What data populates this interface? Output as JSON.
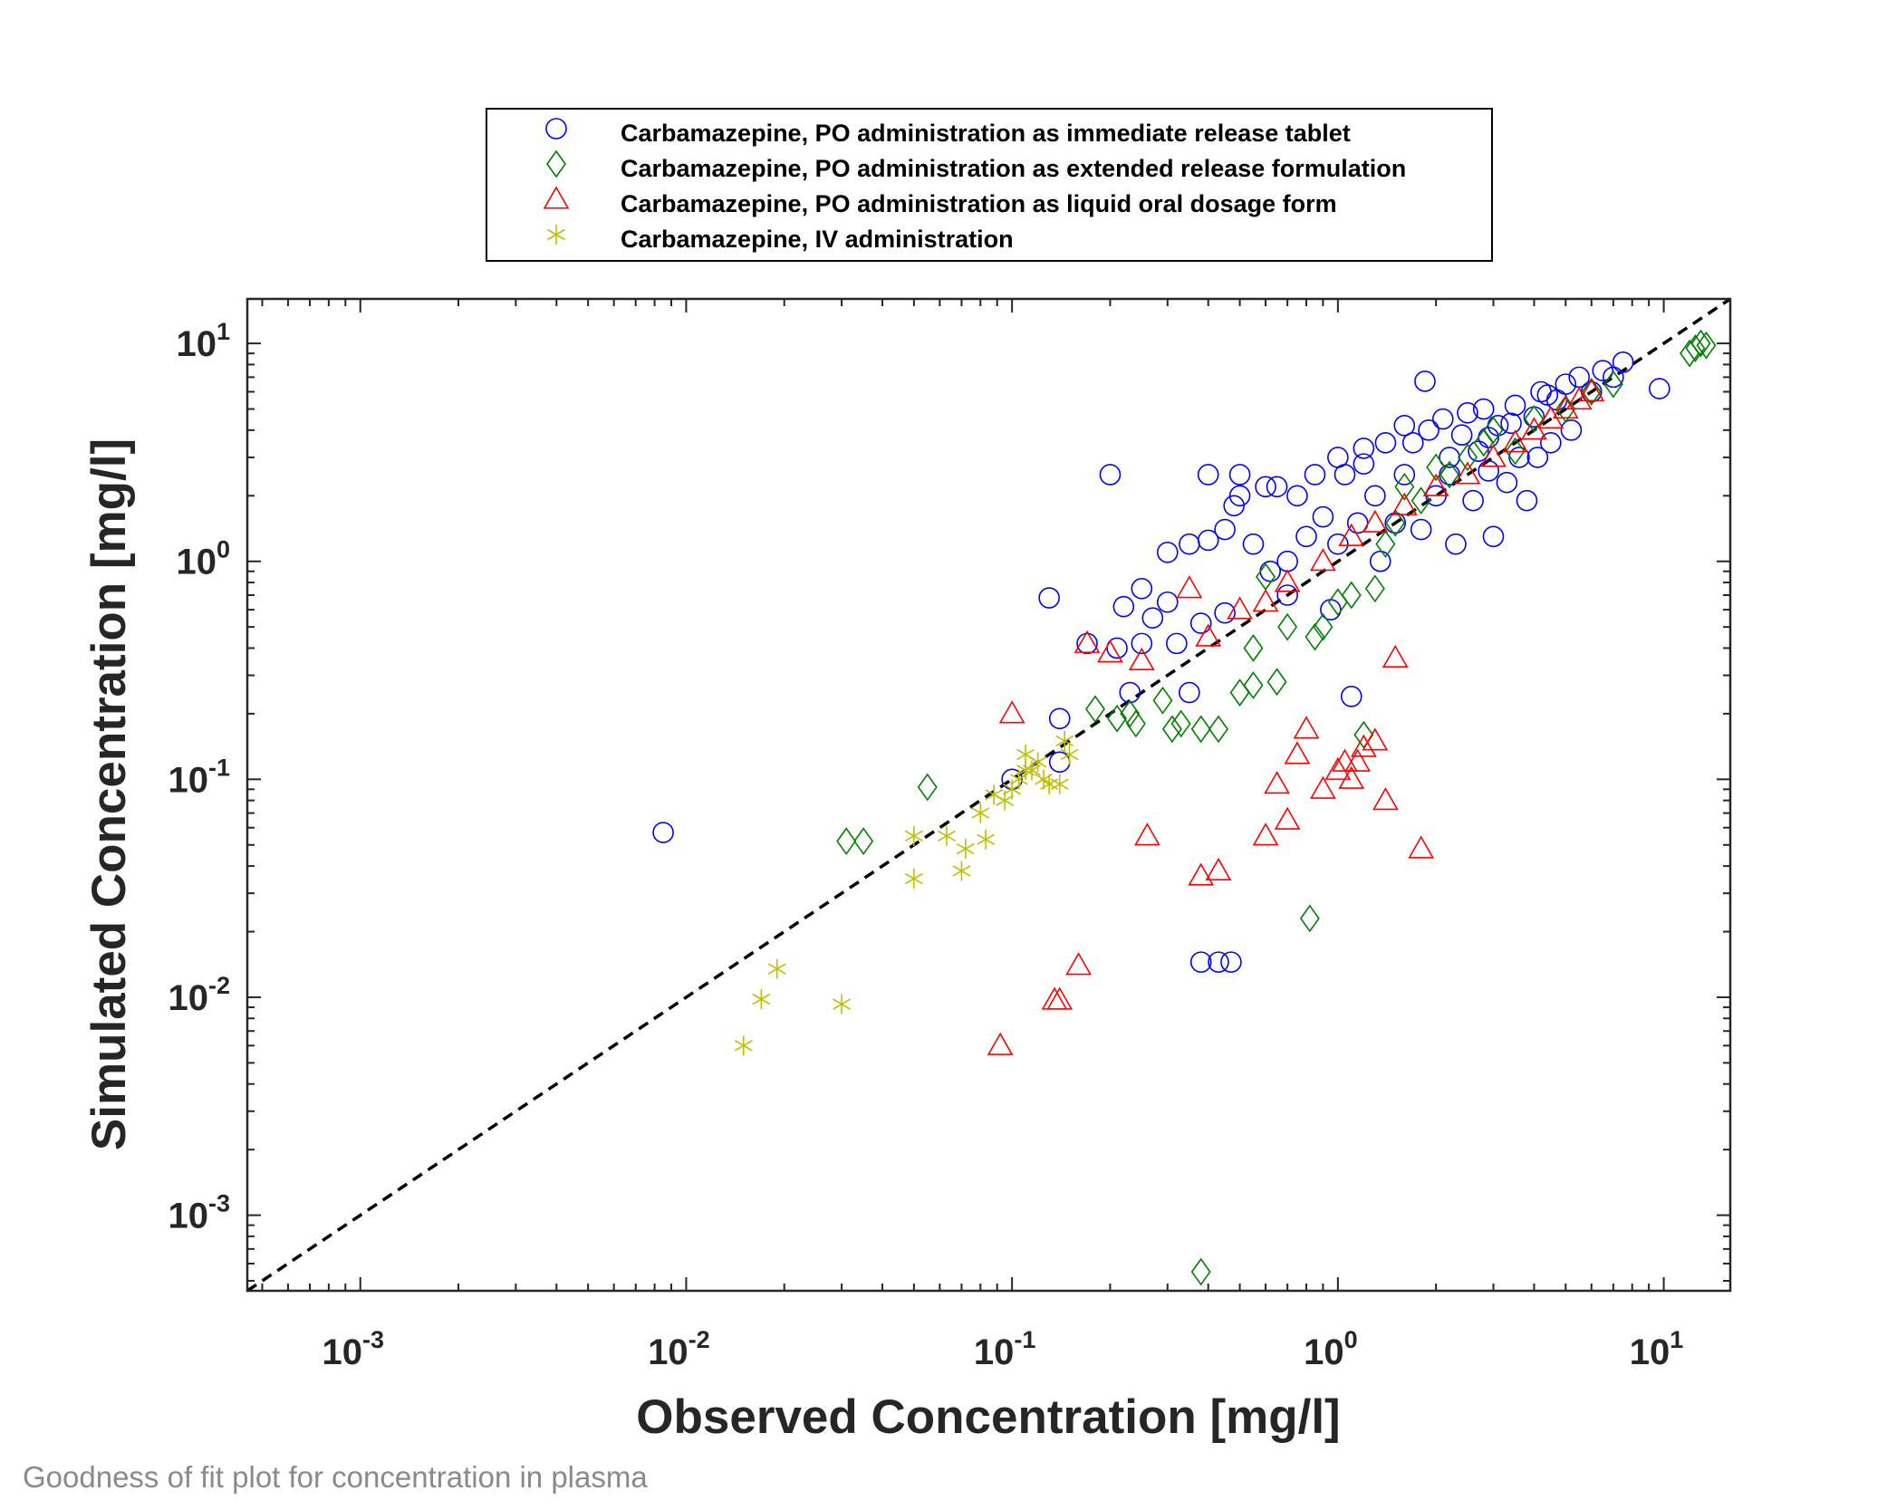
{
  "caption": "Goodness of fit plot for concentration in plasma",
  "colors": {
    "blue": "#0000ff",
    "green": "#008000",
    "red": "#ff0000",
    "yellow": "#bfbf00",
    "axis": "#262626",
    "frame": "#000000"
  },
  "chart_data": {
    "type": "scatter",
    "xlabel": "Observed Concentration [mg/l]",
    "ylabel": "Simulated Concentration [mg/l]",
    "xscale": "log",
    "yscale": "log",
    "xlim": [
      0.00045,
      16
    ],
    "ylim": [
      0.00045,
      16
    ],
    "x_ticks": [
      0.001,
      0.01,
      0.1,
      1,
      10
    ],
    "y_ticks": [
      0.001,
      0.01,
      0.1,
      1,
      10
    ],
    "tick_labels": [
      {
        "base": "10",
        "exp": "-3"
      },
      {
        "base": "10",
        "exp": "-2"
      },
      {
        "base": "10",
        "exp": "-1"
      },
      {
        "base": "10",
        "exp": "0"
      },
      {
        "base": "10",
        "exp": "1"
      }
    ],
    "identity_line": {
      "style": "dashed",
      "color": "#000000"
    },
    "legend_position": "top",
    "grid": false,
    "series": [
      {
        "name": "Carbamazepine, PO administration as immediate release tablet",
        "marker": "circle",
        "color": "#0000ff",
        "points": [
          [
            0.0085,
            0.057
          ],
          [
            0.1,
            0.1
          ],
          [
            0.14,
            0.12
          ],
          [
            0.14,
            0.19
          ],
          [
            0.13,
            0.68
          ],
          [
            0.17,
            0.42
          ],
          [
            0.2,
            2.5
          ],
          [
            0.21,
            0.4
          ],
          [
            0.22,
            0.62
          ],
          [
            0.23,
            0.25
          ],
          [
            0.25,
            0.42
          ],
          [
            0.25,
            0.75
          ],
          [
            0.27,
            0.55
          ],
          [
            0.3,
            0.65
          ],
          [
            0.32,
            0.42
          ],
          [
            0.35,
            0.25
          ],
          [
            0.35,
            1.2
          ],
          [
            0.38,
            0.52
          ],
          [
            0.4,
            2.5
          ],
          [
            0.4,
            1.25
          ],
          [
            0.45,
            1.4
          ],
          [
            0.48,
            1.8
          ],
          [
            0.5,
            2.0
          ],
          [
            0.5,
            2.5
          ],
          [
            0.55,
            1.2
          ],
          [
            0.6,
            2.2
          ],
          [
            0.62,
            0.9
          ],
          [
            0.65,
            2.2
          ],
          [
            0.7,
            1.0
          ],
          [
            0.75,
            2.0
          ],
          [
            0.8,
            1.3
          ],
          [
            0.85,
            2.5
          ],
          [
            0.9,
            1.6
          ],
          [
            0.95,
            0.6
          ],
          [
            1.0,
            3.0
          ],
          [
            1.0,
            1.2
          ],
          [
            1.05,
            2.5
          ],
          [
            1.1,
            0.24
          ],
          [
            1.15,
            1.5
          ],
          [
            1.2,
            3.3
          ],
          [
            1.3,
            2.0
          ],
          [
            1.35,
            1.0
          ],
          [
            1.4,
            3.5
          ],
          [
            1.5,
            1.5
          ],
          [
            1.6,
            2.5
          ],
          [
            1.7,
            3.5
          ],
          [
            1.8,
            1.4
          ],
          [
            1.85,
            6.7
          ],
          [
            1.9,
            4.0
          ],
          [
            2.0,
            2.0
          ],
          [
            2.1,
            4.5
          ],
          [
            2.2,
            2.5
          ],
          [
            2.3,
            1.2
          ],
          [
            2.4,
            3.8
          ],
          [
            2.5,
            4.8
          ],
          [
            2.6,
            1.9
          ],
          [
            2.7,
            3.2
          ],
          [
            2.8,
            5.0
          ],
          [
            2.9,
            2.6
          ],
          [
            3.0,
            1.3
          ],
          [
            3.1,
            4.2
          ],
          [
            3.3,
            2.3
          ],
          [
            3.5,
            5.2
          ],
          [
            3.6,
            3.0
          ],
          [
            3.8,
            1.9
          ],
          [
            4.0,
            4.6
          ],
          [
            4.2,
            6.0
          ],
          [
            4.5,
            3.5
          ],
          [
            4.7,
            5.5
          ],
          [
            5.0,
            6.5
          ],
          [
            5.2,
            4.0
          ],
          [
            5.5,
            7.0
          ],
          [
            6.0,
            6.0
          ],
          [
            6.5,
            7.5
          ],
          [
            7.0,
            7.0
          ],
          [
            7.5,
            8.2
          ],
          [
            9.7,
            6.2
          ],
          [
            0.38,
            0.0145
          ],
          [
            0.43,
            0.0145
          ],
          [
            0.47,
            0.0145
          ],
          [
            0.3,
            1.1
          ],
          [
            0.45,
            0.58
          ],
          [
            0.7,
            0.7
          ],
          [
            1.2,
            2.8
          ],
          [
            1.6,
            4.2
          ],
          [
            2.2,
            3.0
          ],
          [
            2.9,
            3.7
          ],
          [
            3.4,
            4.3
          ],
          [
            4.1,
            3.0
          ],
          [
            4.4,
            5.8
          ]
        ]
      },
      {
        "name": "Carbamazepine, PO administration as extended release formulation",
        "marker": "diamond",
        "color": "#008000",
        "points": [
          [
            0.031,
            0.052
          ],
          [
            0.035,
            0.052
          ],
          [
            0.055,
            0.092
          ],
          [
            0.18,
            0.21
          ],
          [
            0.21,
            0.19
          ],
          [
            0.23,
            0.2
          ],
          [
            0.24,
            0.18
          ],
          [
            0.29,
            0.23
          ],
          [
            0.31,
            0.17
          ],
          [
            0.33,
            0.18
          ],
          [
            0.38,
            0.17
          ],
          [
            0.43,
            0.17
          ],
          [
            0.5,
            0.25
          ],
          [
            0.55,
            0.27
          ],
          [
            0.55,
            0.4
          ],
          [
            0.6,
            0.85
          ],
          [
            0.65,
            0.28
          ],
          [
            0.7,
            0.5
          ],
          [
            0.82,
            0.023
          ],
          [
            0.85,
            0.45
          ],
          [
            0.9,
            0.5
          ],
          [
            1.0,
            0.65
          ],
          [
            1.1,
            0.7
          ],
          [
            1.2,
            0.16
          ],
          [
            1.3,
            0.75
          ],
          [
            1.4,
            1.2
          ],
          [
            1.5,
            1.5
          ],
          [
            1.6,
            2.2
          ],
          [
            1.8,
            1.9
          ],
          [
            2.0,
            2.7
          ],
          [
            2.2,
            2.5
          ],
          [
            2.5,
            3.0
          ],
          [
            2.8,
            3.5
          ],
          [
            3.0,
            4.0
          ],
          [
            3.5,
            3.2
          ],
          [
            4.0,
            4.5
          ],
          [
            5.0,
            5.0
          ],
          [
            6.0,
            6.0
          ],
          [
            7.0,
            6.5
          ],
          [
            12.0,
            9.0
          ],
          [
            12.5,
            9.5
          ],
          [
            13.0,
            10.0
          ],
          [
            13.5,
            9.8
          ],
          [
            0.38,
            0.00055
          ]
        ]
      },
      {
        "name": "Carbamazepine, PO administration as liquid oral dosage form",
        "marker": "triangle",
        "color": "#ff0000",
        "points": [
          [
            0.092,
            0.006
          ],
          [
            0.135,
            0.0097
          ],
          [
            0.14,
            0.0097
          ],
          [
            0.16,
            0.014
          ],
          [
            0.26,
            0.055
          ],
          [
            0.38,
            0.036
          ],
          [
            0.43,
            0.038
          ],
          [
            0.6,
            0.055
          ],
          [
            0.65,
            0.095
          ],
          [
            0.7,
            0.065
          ],
          [
            0.75,
            0.13
          ],
          [
            0.8,
            0.17
          ],
          [
            0.9,
            0.09
          ],
          [
            1.0,
            0.11
          ],
          [
            1.05,
            0.12
          ],
          [
            1.1,
            0.1
          ],
          [
            1.15,
            0.12
          ],
          [
            1.2,
            0.14
          ],
          [
            1.3,
            0.15
          ],
          [
            1.4,
            0.08
          ],
          [
            1.5,
            0.36
          ],
          [
            1.8,
            0.048
          ],
          [
            0.1,
            0.2
          ],
          [
            0.17,
            0.42
          ],
          [
            0.2,
            0.38
          ],
          [
            0.25,
            0.35
          ],
          [
            0.35,
            0.75
          ],
          [
            0.4,
            0.45
          ],
          [
            0.5,
            0.6
          ],
          [
            0.6,
            0.65
          ],
          [
            0.7,
            0.8
          ],
          [
            0.9,
            1.0
          ],
          [
            1.1,
            1.3
          ],
          [
            1.3,
            1.5
          ],
          [
            1.6,
            1.8
          ],
          [
            2.0,
            2.2
          ],
          [
            2.5,
            2.5
          ],
          [
            3.0,
            3.0
          ],
          [
            3.5,
            3.5
          ],
          [
            4.0,
            4.0
          ],
          [
            4.5,
            4.5
          ],
          [
            5.0,
            5.0
          ],
          [
            5.5,
            5.5
          ],
          [
            6.0,
            6.0
          ]
        ]
      },
      {
        "name": "Carbamazepine, IV administration",
        "marker": "asterisk",
        "color": "#bfbf00",
        "points": [
          [
            0.015,
            0.006
          ],
          [
            0.017,
            0.0098
          ],
          [
            0.019,
            0.0135
          ],
          [
            0.03,
            0.0093
          ],
          [
            0.05,
            0.055
          ],
          [
            0.05,
            0.035
          ],
          [
            0.063,
            0.055
          ],
          [
            0.07,
            0.038
          ],
          [
            0.072,
            0.048
          ],
          [
            0.08,
            0.07
          ],
          [
            0.083,
            0.053
          ],
          [
            0.088,
            0.085
          ],
          [
            0.095,
            0.08
          ],
          [
            0.1,
            0.09
          ],
          [
            0.105,
            0.1
          ],
          [
            0.11,
            0.13
          ],
          [
            0.115,
            0.11
          ],
          [
            0.12,
            0.12
          ],
          [
            0.125,
            0.1
          ],
          [
            0.13,
            0.095
          ],
          [
            0.14,
            0.095
          ],
          [
            0.145,
            0.15
          ],
          [
            0.15,
            0.13
          ],
          [
            0.11,
            0.11
          ]
        ]
      }
    ]
  }
}
